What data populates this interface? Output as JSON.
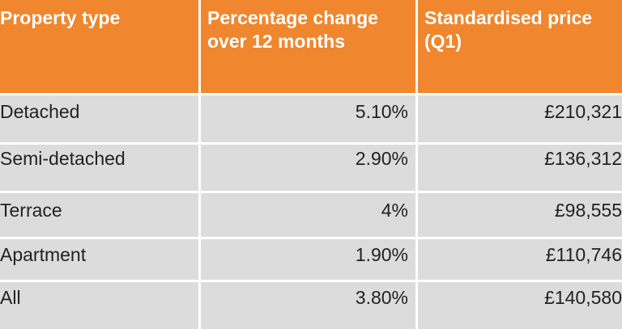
{
  "table": {
    "headers": [
      "Property type",
      "Percentage change over 12 months",
      "Standardised price (Q1)"
    ],
    "rows": [
      [
        "Detached",
        "5.10%",
        "£210,321"
      ],
      [
        "Semi-detached",
        "2.90%",
        "£136,312"
      ],
      [
        "Terrace",
        "4%",
        "£98,555"
      ],
      [
        "Apartment",
        "1.90%",
        "£110,746"
      ],
      [
        "All",
        "3.80%",
        "£140,580"
      ]
    ]
  },
  "colors": {
    "header_bg": "#f0862e",
    "header_text": "#ffffff",
    "row_bg": "#dcdcdd",
    "row_text": "#222222",
    "separator": "#ffffff"
  }
}
